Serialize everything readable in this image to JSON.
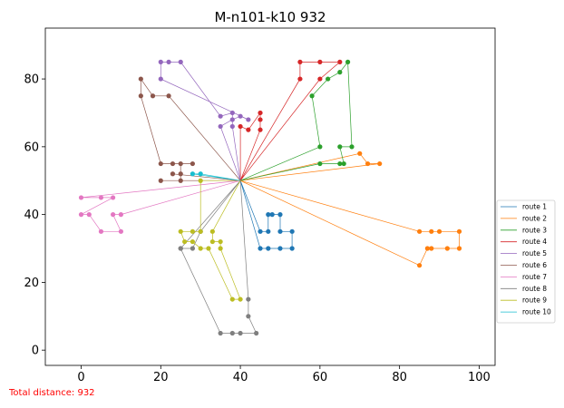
{
  "chart_data": {
    "type": "line",
    "title": "M-n101-k10 932",
    "xlabel": "",
    "ylabel": "",
    "xlim": [
      -9,
      104
    ],
    "ylim": [
      -4.5,
      95
    ],
    "xticks": [
      0,
      20,
      40,
      60,
      80,
      100
    ],
    "yticks": [
      0,
      20,
      40,
      60,
      80
    ],
    "grid": false,
    "legend_position": "right",
    "depot": [
      40,
      50
    ],
    "series": [
      {
        "name": "route 1",
        "color": "#1f77b4",
        "points": [
          [
            40,
            50
          ],
          [
            45,
            30
          ],
          [
            47,
            30
          ],
          [
            50,
            30
          ],
          [
            53,
            30
          ],
          [
            53,
            35
          ],
          [
            50,
            35
          ],
          [
            50,
            40
          ],
          [
            48,
            40
          ],
          [
            47,
            40
          ],
          [
            47,
            35
          ],
          [
            45,
            35
          ],
          [
            40,
            50
          ]
        ]
      },
      {
        "name": "route 2",
        "color": "#ff7f0e",
        "points": [
          [
            40,
            50
          ],
          [
            85,
            35
          ],
          [
            88,
            35
          ],
          [
            90,
            35
          ],
          [
            95,
            35
          ],
          [
            95,
            30
          ],
          [
            92,
            30
          ],
          [
            88,
            30
          ],
          [
            87,
            30
          ],
          [
            85,
            25
          ],
          [
            40,
            50
          ],
          [
            75,
            55
          ],
          [
            72,
            55
          ],
          [
            70,
            58
          ],
          [
            40,
            50
          ]
        ]
      },
      {
        "name": "route 3",
        "color": "#2ca02c",
        "points": [
          [
            40,
            50
          ],
          [
            60,
            55
          ],
          [
            65,
            55
          ],
          [
            66,
            55
          ],
          [
            65,
            60
          ],
          [
            68,
            60
          ],
          [
            67,
            85
          ],
          [
            65,
            82
          ],
          [
            62,
            80
          ],
          [
            58,
            75
          ],
          [
            60,
            60
          ],
          [
            40,
            50
          ]
        ]
      },
      {
        "name": "route 4",
        "color": "#d62728",
        "points": [
          [
            40,
            50
          ],
          [
            45,
            65
          ],
          [
            45,
            68
          ],
          [
            45,
            70
          ],
          [
            42,
            65
          ],
          [
            40,
            66
          ],
          [
            40,
            50
          ],
          [
            55,
            80
          ],
          [
            55,
            85
          ],
          [
            60,
            85
          ],
          [
            65,
            85
          ],
          [
            60,
            80
          ],
          [
            40,
            50
          ]
        ]
      },
      {
        "name": "route 5",
        "color": "#9467bd",
        "points": [
          [
            40,
            50
          ],
          [
            38,
            66
          ],
          [
            38,
            70
          ],
          [
            35,
            69
          ],
          [
            25,
            85
          ],
          [
            22,
            85
          ],
          [
            20,
            85
          ],
          [
            20,
            80
          ],
          [
            42,
            68
          ],
          [
            40,
            69
          ],
          [
            38,
            68
          ],
          [
            35,
            66
          ],
          [
            40,
            50
          ]
        ]
      },
      {
        "name": "route 6",
        "color": "#8c564b",
        "points": [
          [
            40,
            50
          ],
          [
            20,
            50
          ],
          [
            25,
            50
          ],
          [
            25,
            52
          ],
          [
            25,
            55
          ],
          [
            28,
            55
          ],
          [
            23,
            55
          ],
          [
            20,
            55
          ],
          [
            15,
            75
          ],
          [
            15,
            80
          ],
          [
            18,
            75
          ],
          [
            22,
            75
          ],
          [
            40,
            50
          ],
          [
            23,
            52
          ],
          [
            40,
            50
          ]
        ]
      },
      {
        "name": "route 7",
        "color": "#e377c2",
        "points": [
          [
            40,
            50
          ],
          [
            0,
            45
          ],
          [
            5,
            45
          ],
          [
            8,
            45
          ],
          [
            0,
            40
          ],
          [
            2,
            40
          ],
          [
            5,
            35
          ],
          [
            10,
            35
          ],
          [
            8,
            40
          ],
          [
            10,
            40
          ],
          [
            40,
            50
          ]
        ]
      },
      {
        "name": "route 8",
        "color": "#7f7f7f",
        "points": [
          [
            40,
            50
          ],
          [
            25,
            30
          ],
          [
            28,
            30
          ],
          [
            30,
            35
          ],
          [
            40,
            50
          ],
          [
            42,
            15
          ],
          [
            42,
            10
          ],
          [
            44,
            5
          ],
          [
            40,
            5
          ],
          [
            38,
            5
          ],
          [
            35,
            5
          ],
          [
            25,
            30
          ],
          [
            40,
            50
          ]
        ]
      },
      {
        "name": "route 9",
        "color": "#bcbd22",
        "points": [
          [
            40,
            50
          ],
          [
            30,
            50
          ],
          [
            30,
            35
          ],
          [
            28,
            35
          ],
          [
            25,
            35
          ],
          [
            26,
            32
          ],
          [
            28,
            32
          ],
          [
            30,
            30
          ],
          [
            32,
            30
          ],
          [
            38,
            15
          ],
          [
            40,
            15
          ],
          [
            35,
            30
          ],
          [
            35,
            32
          ],
          [
            33,
            32
          ],
          [
            33,
            35
          ],
          [
            40,
            50
          ]
        ]
      },
      {
        "name": "route 10",
        "color": "#17becf",
        "points": [
          [
            40,
            50
          ],
          [
            30,
            52
          ],
          [
            28,
            52
          ],
          [
            40,
            50
          ]
        ]
      }
    ]
  },
  "footer": {
    "total_label": "Total distance: 932"
  }
}
